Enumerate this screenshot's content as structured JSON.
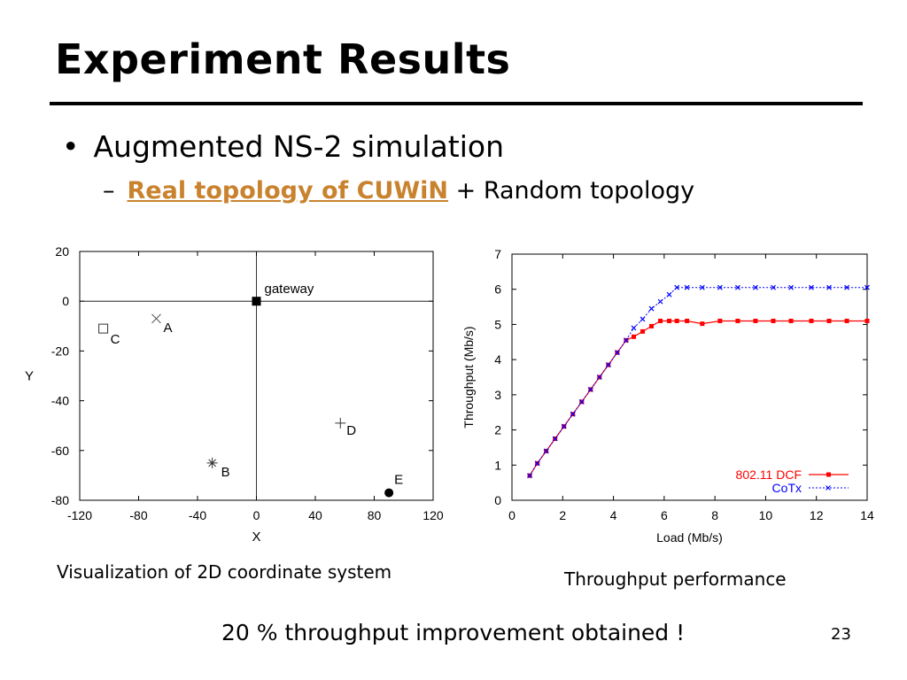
{
  "slide": {
    "title": "Experiment Results",
    "bullet": "Augmented NS-2 simulation",
    "bullet_marker": "•",
    "sub_marker": "–",
    "sub_link": "Real topology of CUWiN",
    "sub_rest": "+ Random topology",
    "caption_left": "Visualization of 2D coordinate system",
    "caption_right": "Throughput performance",
    "conclusion": "20 % throughput improvement obtained !",
    "page_number": "23",
    "colors": {
      "link": "#c9822e",
      "dcf": "#ff0000",
      "cotx": "#0000ff",
      "rule": "#000000"
    }
  },
  "chart_data": [
    {
      "type": "scatter",
      "title": "",
      "xlabel": "X",
      "ylabel": "Y",
      "xlim": [
        -120,
        120
      ],
      "ylim": [
        -80,
        20
      ],
      "xticks": [
        -120,
        -80,
        -40,
        0,
        40,
        80,
        120
      ],
      "yticks": [
        20,
        0,
        -20,
        -40,
        -60,
        -80
      ],
      "reference_lines": {
        "x": 0,
        "y": 0
      },
      "points": [
        {
          "label": "gateway",
          "x": 0,
          "y": 0,
          "marker": "filled-square"
        },
        {
          "label": "A",
          "x": -68,
          "y": -7,
          "marker": "x"
        },
        {
          "label": "B",
          "x": -30,
          "y": -65,
          "marker": "star"
        },
        {
          "label": "C",
          "x": -104,
          "y": -11,
          "marker": "open-square"
        },
        {
          "label": "D",
          "x": 57,
          "y": -49,
          "marker": "plus"
        },
        {
          "label": "E",
          "x": 90,
          "y": -77,
          "marker": "filled-circle"
        }
      ]
    },
    {
      "type": "line",
      "title": "",
      "xlabel": "Load (Mb/s)",
      "ylabel": "Throughput (Mb/s)",
      "xlim": [
        0,
        14
      ],
      "ylim": [
        0,
        7
      ],
      "xticks": [
        0,
        2,
        4,
        6,
        8,
        10,
        12,
        14
      ],
      "yticks": [
        0,
        1,
        2,
        3,
        4,
        5,
        6,
        7
      ],
      "legend": "bottom-right",
      "series": [
        {
          "name": "802.11 DCF",
          "color": "#ff0000",
          "marker": "square",
          "x": [
            0.7,
            1.0,
            1.35,
            1.7,
            2.05,
            2.4,
            2.75,
            3.1,
            3.45,
            3.8,
            4.15,
            4.5,
            4.8,
            5.15,
            5.5,
            5.85,
            6.2,
            6.5,
            6.9,
            7.5,
            8.2,
            8.9,
            9.6,
            10.3,
            11.0,
            11.8,
            12.5,
            13.2,
            14.0
          ],
          "y": [
            0.7,
            1.05,
            1.4,
            1.75,
            2.1,
            2.45,
            2.8,
            3.15,
            3.5,
            3.85,
            4.2,
            4.55,
            4.65,
            4.8,
            4.95,
            5.1,
            5.1,
            5.1,
            5.1,
            5.02,
            5.1,
            5.1,
            5.1,
            5.1,
            5.1,
            5.1,
            5.1,
            5.1,
            5.1
          ]
        },
        {
          "name": "CoTx",
          "color": "#0000ff",
          "marker": "x",
          "x": [
            0.7,
            1.0,
            1.35,
            1.7,
            2.05,
            2.4,
            2.75,
            3.1,
            3.45,
            3.8,
            4.15,
            4.5,
            4.8,
            5.15,
            5.5,
            5.85,
            6.2,
            6.5,
            6.9,
            7.5,
            8.2,
            8.9,
            9.6,
            10.3,
            11.0,
            11.8,
            12.5,
            13.2,
            14.0
          ],
          "y": [
            0.7,
            1.05,
            1.4,
            1.75,
            2.1,
            2.45,
            2.8,
            3.15,
            3.5,
            3.85,
            4.2,
            4.55,
            4.9,
            5.15,
            5.45,
            5.65,
            5.85,
            6.05,
            6.05,
            6.05,
            6.05,
            6.05,
            6.05,
            6.05,
            6.05,
            6.05,
            6.05,
            6.05,
            6.05
          ]
        }
      ]
    }
  ]
}
